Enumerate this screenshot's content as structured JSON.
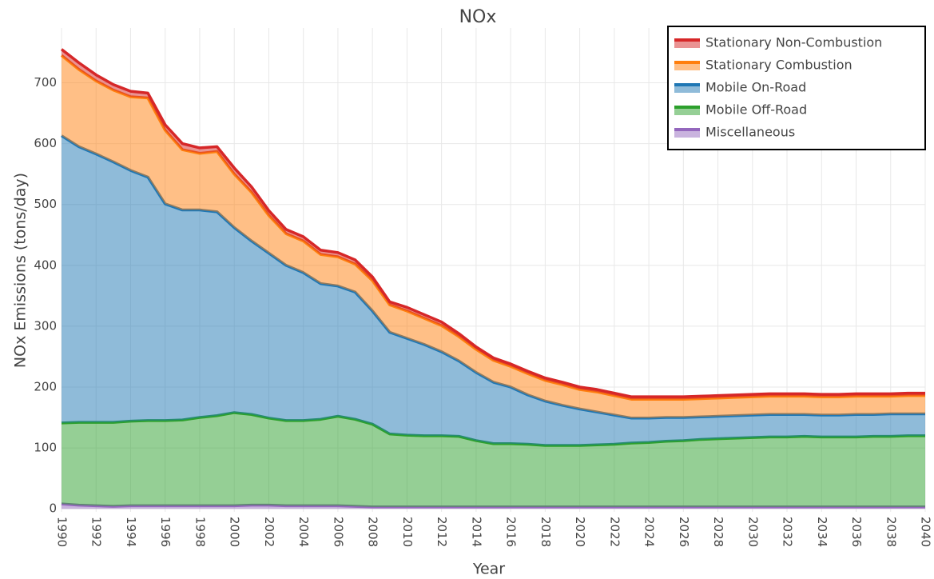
{
  "chart_data": {
    "type": "stacked_area",
    "title": "NOx",
    "x_label": "Year",
    "y_label": "NOx Emissions (tons/day)",
    "x": [
      1990,
      1991,
      1992,
      1993,
      1994,
      1995,
      1996,
      1997,
      1998,
      1999,
      2000,
      2001,
      2002,
      2003,
      2004,
      2005,
      2006,
      2007,
      2008,
      2009,
      2010,
      2011,
      2012,
      2013,
      2014,
      2015,
      2016,
      2017,
      2018,
      2019,
      2020,
      2021,
      2022,
      2023,
      2024,
      2025,
      2026,
      2027,
      2028,
      2029,
      2030,
      2031,
      2032,
      2033,
      2034,
      2035,
      2036,
      2037,
      2038,
      2039,
      2040
    ],
    "xlim": [
      1990,
      2040
    ],
    "xticks": [
      1990,
      1992,
      1994,
      1996,
      1998,
      2000,
      2002,
      2004,
      2006,
      2008,
      2010,
      2012,
      2014,
      2016,
      2018,
      2020,
      2022,
      2024,
      2026,
      2028,
      2030,
      2032,
      2034,
      2036,
      2038,
      2040
    ],
    "ylim": [
      -5,
      790
    ],
    "yticks": [
      0,
      100,
      200,
      300,
      400,
      500,
      600,
      700
    ],
    "grid": true,
    "legend_position": "top-right",
    "series": [
      {
        "name": "Miscellaneous",
        "color": "#9467bd",
        "values": [
          8,
          6,
          5,
          4,
          5,
          5,
          5,
          5,
          5,
          5,
          5,
          6,
          6,
          5,
          5,
          5,
          5,
          4,
          3,
          3,
          3,
          3,
          3,
          3,
          3,
          3,
          3,
          3,
          3,
          3,
          3,
          3,
          3,
          3,
          3,
          3,
          3,
          3,
          3,
          3,
          3,
          3,
          3,
          3,
          3,
          3,
          3,
          3,
          3,
          3,
          3
        ]
      },
      {
        "name": "Mobile Off-Road",
        "color": "#2ca02c",
        "values": [
          133,
          136,
          137,
          138,
          139,
          140,
          140,
          141,
          145,
          148,
          153,
          149,
          143,
          140,
          140,
          142,
          147,
          143,
          136,
          120,
          118,
          117,
          117,
          116,
          109,
          104,
          104,
          103,
          101,
          101,
          101,
          102,
          103,
          105,
          106,
          108,
          109,
          111,
          112,
          113,
          114,
          115,
          115,
          116,
          115,
          115,
          115,
          116,
          116,
          117,
          117
        ]
      },
      {
        "name": "Mobile On-Road",
        "color": "#1f77b4",
        "values": [
          472,
          453,
          441,
          428,
          412,
          400,
          356,
          345,
          341,
          335,
          304,
          285,
          271,
          255,
          243,
          223,
          214,
          209,
          186,
          167,
          159,
          150,
          138,
          124,
          112,
          101,
          93,
          81,
          73,
          66,
          60,
          54,
          48,
          41,
          40,
          39,
          38,
          37,
          37,
          37,
          37,
          37,
          37,
          36,
          36,
          36,
          37,
          36,
          37,
          36,
          36
        ]
      },
      {
        "name": "Stationary Combustion",
        "color": "#ff7f0e",
        "values": [
          132,
          127,
          120,
          118,
          121,
          130,
          121,
          99,
          93,
          99,
          88,
          80,
          62,
          52,
          52,
          48,
          48,
          46,
          50,
          45,
          45,
          43,
          43,
          40,
          38,
          36,
          34,
          35,
          34,
          34,
          32,
          33,
          32,
          31,
          31,
          30,
          30,
          30,
          30,
          30,
          30,
          30,
          30,
          30,
          30,
          30,
          30,
          30,
          29,
          30,
          30
        ]
      },
      {
        "name": "Stationary Non-Combustion",
        "color": "#d62728",
        "values": [
          10,
          11,
          10,
          9,
          9,
          8,
          9,
          10,
          9,
          8,
          10,
          9,
          8,
          7,
          7,
          7,
          7,
          7,
          6,
          5,
          6,
          6,
          6,
          5,
          4,
          4,
          4,
          4,
          4,
          4,
          4,
          4,
          4,
          4,
          4,
          4,
          4,
          4,
          4,
          4,
          4,
          4,
          4,
          4,
          4,
          4,
          4,
          4,
          4,
          4,
          4
        ]
      }
    ]
  }
}
